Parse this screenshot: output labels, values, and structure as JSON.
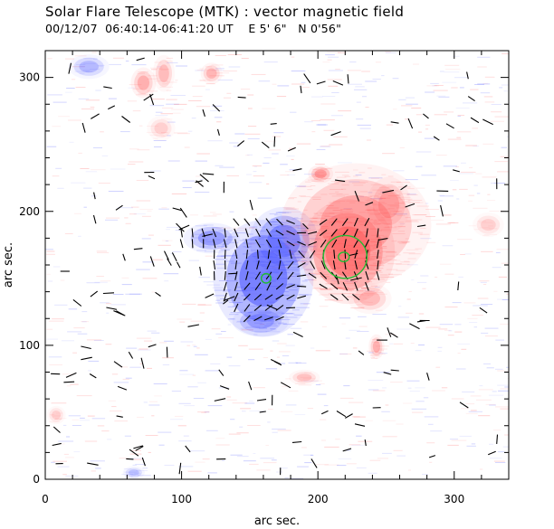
{
  "chart_data": {
    "type": "heatmap",
    "title": "Solar Flare Telescope (MTK) : vector magnetic field",
    "subtitle": {
      "date": "00/12/07",
      "time_range": "06:40:14-06:41:20 UT",
      "east": "E 5' 6\"",
      "north": "N 0'56\""
    },
    "xlabel": "arc sec.",
    "ylabel": "arc sec.",
    "xlim": [
      0,
      340
    ],
    "ylim": [
      0,
      320
    ],
    "xticks": [
      0,
      100,
      200,
      300
    ],
    "yticks": [
      0,
      100,
      200,
      300
    ],
    "colors": {
      "positive_polarity": "#ff5a5a",
      "negative_polarity": "#4a55ff",
      "contour": "#22bb33",
      "vectors": "#000000"
    },
    "regions": [
      {
        "name": "negative-sunspot",
        "polarity": "negative",
        "cx": 160,
        "cy": 150,
        "rx": 32,
        "ry": 38,
        "strength": 1.0
      },
      {
        "name": "negative-extension-upper",
        "polarity": "negative",
        "cx": 175,
        "cy": 178,
        "rx": 22,
        "ry": 22,
        "strength": 0.85
      },
      {
        "name": "negative-arm-west",
        "polarity": "negative",
        "cx": 122,
        "cy": 180,
        "rx": 18,
        "ry": 10,
        "strength": 0.7
      },
      {
        "name": "negative-tail-south",
        "polarity": "negative",
        "cx": 158,
        "cy": 118,
        "rx": 18,
        "ry": 10,
        "strength": 0.6
      },
      {
        "name": "positive-sunspot",
        "polarity": "positive",
        "cx": 222,
        "cy": 170,
        "rx": 30,
        "ry": 34,
        "strength": 1.0
      },
      {
        "name": "positive-halo",
        "polarity": "positive",
        "cx": 228,
        "cy": 190,
        "rx": 48,
        "ry": 40,
        "strength": 0.6
      },
      {
        "name": "positive-blob-north",
        "polarity": "positive",
        "cx": 202,
        "cy": 228,
        "rx": 8,
        "ry": 6,
        "strength": 0.7
      },
      {
        "name": "positive-east-ext",
        "polarity": "positive",
        "cx": 252,
        "cy": 205,
        "rx": 14,
        "ry": 18,
        "strength": 0.5
      },
      {
        "name": "positive-south",
        "polarity": "positive",
        "cx": 238,
        "cy": 135,
        "rx": 14,
        "ry": 10,
        "strength": 0.45
      },
      {
        "name": "positive-speck-1",
        "polarity": "positive",
        "cx": 243,
        "cy": 99,
        "rx": 5,
        "ry": 8,
        "strength": 0.55
      },
      {
        "name": "positive-speck-2",
        "polarity": "positive",
        "cx": 190,
        "cy": 76,
        "rx": 10,
        "ry": 5,
        "strength": 0.4
      },
      {
        "name": "positive-topleft-1",
        "polarity": "positive",
        "cx": 72,
        "cy": 296,
        "rx": 8,
        "ry": 10,
        "strength": 0.55
      },
      {
        "name": "positive-topleft-2",
        "polarity": "positive",
        "cx": 87,
        "cy": 303,
        "rx": 7,
        "ry": 12,
        "strength": 0.45
      },
      {
        "name": "positive-topleft-3",
        "polarity": "positive",
        "cx": 122,
        "cy": 303,
        "rx": 7,
        "ry": 7,
        "strength": 0.5
      },
      {
        "name": "positive-topleft-4",
        "polarity": "positive",
        "cx": 85,
        "cy": 262,
        "rx": 9,
        "ry": 8,
        "strength": 0.3
      },
      {
        "name": "negative-topleft",
        "polarity": "negative",
        "cx": 32,
        "cy": 308,
        "rx": 13,
        "ry": 8,
        "strength": 0.45
      },
      {
        "name": "negative-speck-bottom",
        "polarity": "negative",
        "cx": 65,
        "cy": 5,
        "rx": 7,
        "ry": 4,
        "strength": 0.4
      },
      {
        "name": "positive-left-1",
        "polarity": "positive",
        "cx": 8,
        "cy": 48,
        "rx": 6,
        "ry": 6,
        "strength": 0.3
      },
      {
        "name": "positive-right-1",
        "polarity": "positive",
        "cx": 325,
        "cy": 190,
        "rx": 10,
        "ry": 8,
        "strength": 0.3
      }
    ],
    "contours": [
      {
        "cx": 220,
        "cy": 166,
        "rx": 16,
        "ry": 16
      },
      {
        "cx": 219,
        "cy": 166,
        "rx": 4,
        "ry": 3.5
      },
      {
        "cx": 162,
        "cy": 150,
        "rx": 3.5,
        "ry": 3.5
      }
    ]
  }
}
